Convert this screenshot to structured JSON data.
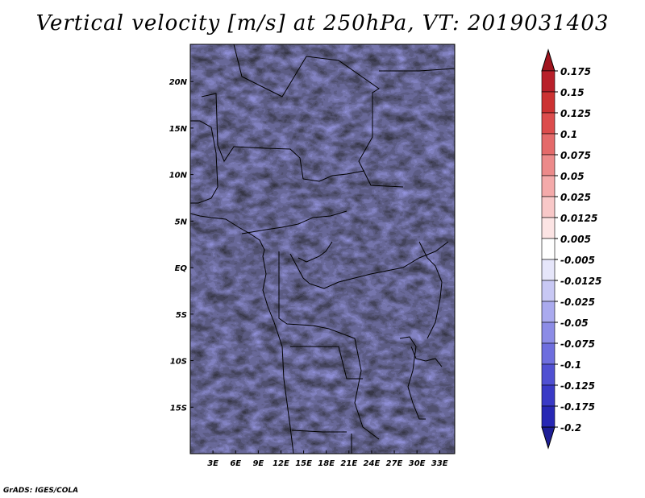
{
  "title": "Vertical velocity [m/s] at 250hPa, VT: 2019031403",
  "footer": "GrADS: IGES/COLA",
  "chart_data": {
    "type": "heatmap",
    "title": "Vertical velocity [m/s] at 250hPa, VT: 2019031403",
    "variable": "Vertical velocity",
    "units": "m/s",
    "level": "250hPa",
    "valid_time": "2019031403",
    "xlim": [
      0,
      35
    ],
    "ylim": [
      -20,
      24
    ],
    "x_ticks": [
      {
        "value": 3,
        "label": "3E"
      },
      {
        "value": 6,
        "label": "6E"
      },
      {
        "value": 9,
        "label": "9E"
      },
      {
        "value": 12,
        "label": "12E"
      },
      {
        "value": 15,
        "label": "15E"
      },
      {
        "value": 18,
        "label": "18E"
      },
      {
        "value": 21,
        "label": "21E"
      },
      {
        "value": 24,
        "label": "24E"
      },
      {
        "value": 27,
        "label": "27E"
      },
      {
        "value": 30,
        "label": "30E"
      },
      {
        "value": 33,
        "label": "33E"
      }
    ],
    "y_ticks": [
      {
        "value": 20,
        "label": "20N"
      },
      {
        "value": 15,
        "label": "15N"
      },
      {
        "value": 10,
        "label": "10N"
      },
      {
        "value": 5,
        "label": "5N"
      },
      {
        "value": 0,
        "label": "EQ"
      },
      {
        "value": -5,
        "label": "5S"
      },
      {
        "value": -10,
        "label": "10S"
      },
      {
        "value": -15,
        "label": "15S"
      }
    ],
    "colorbar": {
      "labels": [
        "0.175",
        "0.15",
        "0.125",
        "0.1",
        "0.075",
        "0.05",
        "0.025",
        "0.0125",
        "0.005",
        "-0.005",
        "-0.0125",
        "-0.025",
        "-0.05",
        "-0.075",
        "-0.1",
        "-0.125",
        "-0.175",
        "-0.2"
      ],
      "colors": [
        "#a0141e",
        "#b8202a",
        "#cc3232",
        "#dc4c4c",
        "#e46a6a",
        "#ec8a8a",
        "#f4aaaa",
        "#f8c8c8",
        "#fce4e4",
        "#ffffff",
        "#e6e6fa",
        "#c8c8f4",
        "#aaaaee",
        "#8c8ce6",
        "#6e6ede",
        "#5050d2",
        "#3a3ac6",
        "#2828b4",
        "#1e1e96"
      ]
    }
  }
}
